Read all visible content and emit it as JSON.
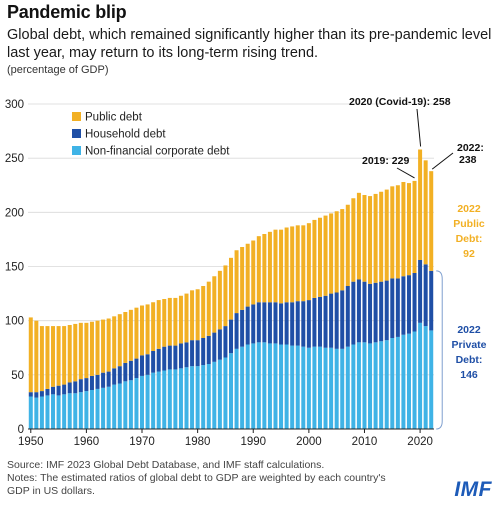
{
  "header": {
    "title": "Pandemic blip",
    "subtitle": "Global debt, which remained significantly higher than its pre-pandemic level last year, may return to its long-term rising trend.",
    "unit": "(percentage of GDP)"
  },
  "footer": {
    "source": "Source: IMF 2023 Global Debt Database, and IMF staff calculations.",
    "notes": "Notes: The estimated ratios of global debt to GDP are weighted by each country's GDP in US dollars.",
    "logo": "IMF"
  },
  "colors": {
    "public": "#f2b024",
    "household": "#1f4fa6",
    "corporate": "#3fb3e6",
    "annotation_orange": "#f2b024",
    "annotation_blue": "#1f4fa6"
  },
  "chart_data": {
    "type": "bar",
    "stacked": true,
    "title": "Pandemic blip",
    "ylim": [
      0,
      300
    ],
    "yticks": [
      0,
      50,
      100,
      150,
      200,
      250,
      300
    ],
    "xticks": [
      1950,
      1960,
      1970,
      1980,
      1990,
      2000,
      2010,
      2020
    ],
    "grid": true,
    "legend_position": "top-left",
    "years": [
      1950,
      1951,
      1952,
      1953,
      1954,
      1955,
      1956,
      1957,
      1958,
      1959,
      1960,
      1961,
      1962,
      1963,
      1964,
      1965,
      1966,
      1967,
      1968,
      1969,
      1970,
      1971,
      1972,
      1973,
      1974,
      1975,
      1976,
      1977,
      1978,
      1979,
      1980,
      1981,
      1982,
      1983,
      1984,
      1985,
      1986,
      1987,
      1988,
      1989,
      1990,
      1991,
      1992,
      1993,
      1994,
      1995,
      1996,
      1997,
      1998,
      1999,
      2000,
      2001,
      2002,
      2003,
      2004,
      2005,
      2006,
      2007,
      2008,
      2009,
      2010,
      2011,
      2012,
      2013,
      2014,
      2015,
      2016,
      2017,
      2018,
      2019,
      2020,
      2021,
      2022
    ],
    "series": [
      {
        "name": "Non-financial corporate debt",
        "values": [
          30,
          29,
          30,
          31,
          32,
          31,
          32,
          33,
          33,
          34,
          35,
          36,
          37,
          38,
          39,
          41,
          42,
          44,
          45,
          47,
          49,
          50,
          52,
          53,
          54,
          55,
          55,
          56,
          57,
          58,
          58,
          59,
          60,
          62,
          64,
          66,
          70,
          74,
          76,
          78,
          79,
          80,
          80,
          79,
          79,
          78,
          78,
          77,
          77,
          76,
          75,
          76,
          76,
          75,
          75,
          74,
          74,
          76,
          78,
          80,
          80,
          79,
          80,
          81,
          82,
          84,
          85,
          87,
          88,
          90,
          98,
          95,
          91
        ]
      },
      {
        "name": "Household debt",
        "values": [
          4,
          5,
          5,
          6,
          7,
          9,
          9,
          10,
          11,
          12,
          12,
          13,
          13,
          14,
          14,
          15,
          16,
          17,
          18,
          18,
          19,
          19,
          20,
          21,
          22,
          22,
          22,
          23,
          23,
          24,
          24,
          25,
          26,
          27,
          28,
          29,
          31,
          33,
          34,
          35,
          36,
          37,
          37,
          38,
          38,
          38,
          39,
          40,
          41,
          42,
          44,
          45,
          46,
          48,
          50,
          52,
          54,
          56,
          58,
          58,
          56,
          55,
          55,
          55,
          55,
          55,
          54,
          54,
          54,
          54,
          58,
          57,
          55
        ]
      },
      {
        "name": "Public debt",
        "values": [
          69,
          66,
          60,
          58,
          56,
          55,
          54,
          53,
          53,
          52,
          51,
          50,
          50,
          49,
          49,
          48,
          48,
          47,
          47,
          47,
          46,
          46,
          45,
          45,
          44,
          44,
          44,
          44,
          45,
          46,
          47,
          48,
          50,
          52,
          54,
          56,
          57,
          58,
          58,
          58,
          59,
          61,
          63,
          65,
          67,
          68,
          69,
          70,
          70,
          70,
          71,
          72,
          73,
          74,
          74,
          75,
          75,
          75,
          77,
          80,
          80,
          81,
          82,
          83,
          84,
          85,
          86,
          87,
          85,
          85,
          102,
          96,
          92
        ]
      }
    ],
    "totals_labeled": {
      "2019": 229,
      "2020": 258,
      "2022": 238
    },
    "annotations": {
      "covid": "2020 (Covid-19): 258",
      "y2019": "2019: 229",
      "y2022_line1": "2022:",
      "y2022_line2": "238",
      "public_line1": "2022",
      "public_line2": "Public",
      "public_line3": "Debt:",
      "public_line4": "92",
      "private_line1": "2022",
      "private_line2": "Private",
      "private_line3": "Debt:",
      "private_line4": "146"
    }
  }
}
